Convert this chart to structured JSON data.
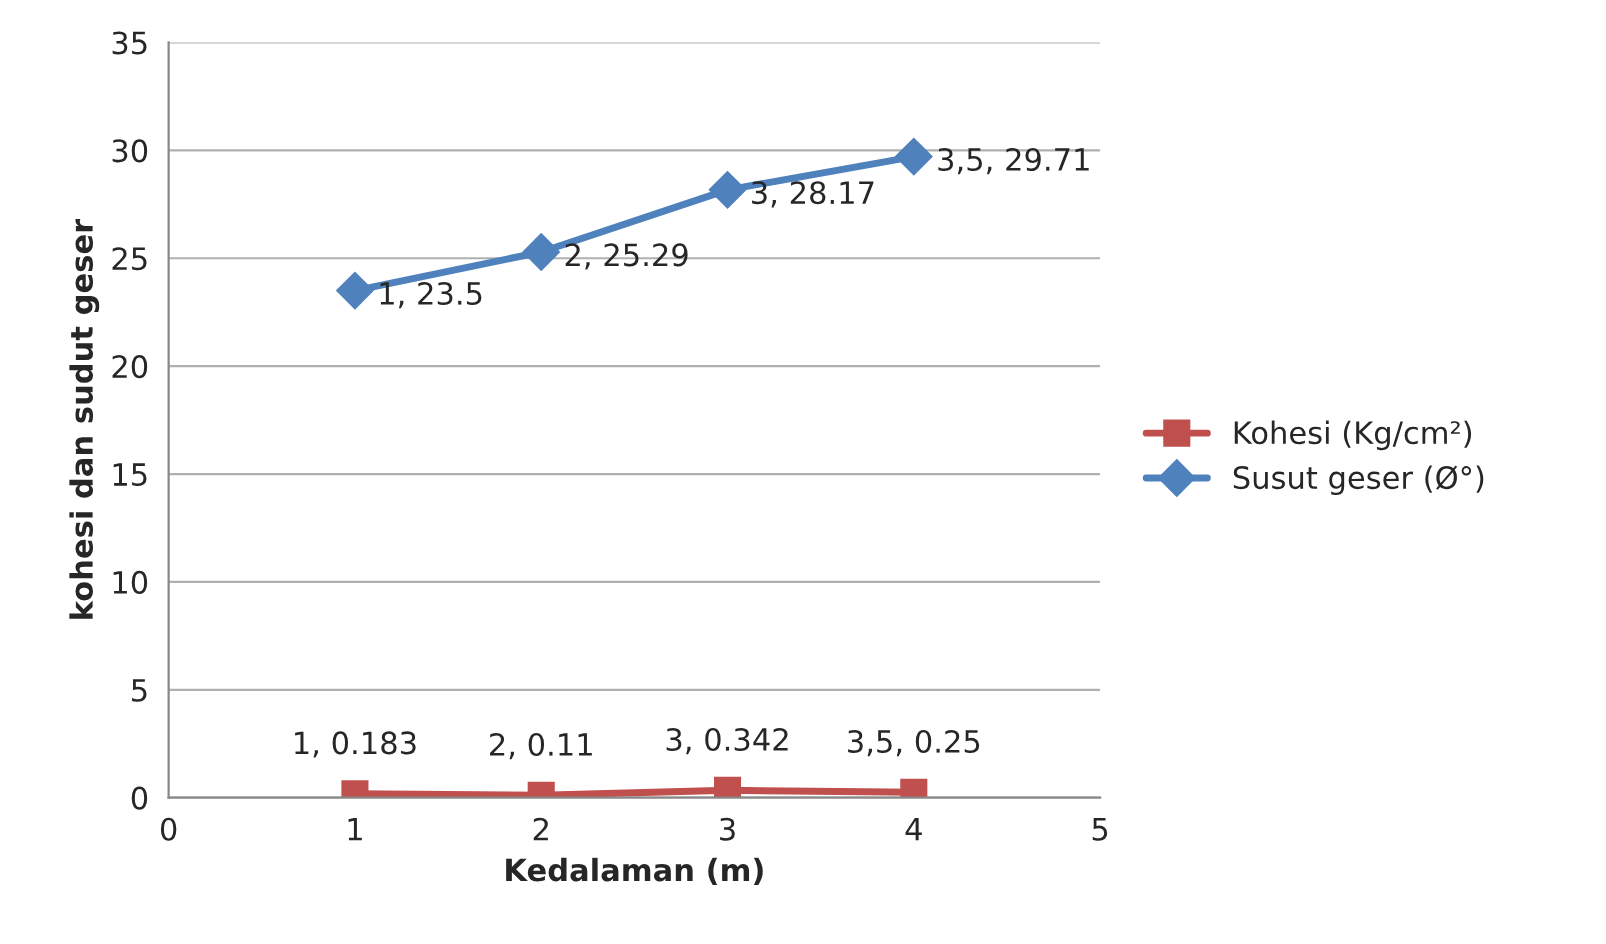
{
  "chart_data": {
    "type": "line",
    "xlabel": "Kedalaman (m)",
    "ylabel": "kohesi dan sudut geser",
    "x": [
      1,
      2,
      3,
      4
    ],
    "series": [
      {
        "name": "Kohesi (Kg/cm²)",
        "color": "#c0504d",
        "marker": "square",
        "values": [
          0.183,
          0.11,
          0.342,
          0.25
        ],
        "value_labels": [
          "1, 0.183",
          "2, 0.11",
          "3, 0.342",
          "3,5, 0.25"
        ]
      },
      {
        "name": "Susut geser (Ø°)",
        "color": "#4f81bd",
        "marker": "diamond",
        "values": [
          23.5,
          25.29,
          28.17,
          29.71
        ],
        "value_labels": [
          "1, 23.5",
          "2, 25.29",
          "3, 28.17",
          "3,5, 29.71"
        ]
      }
    ],
    "xlim": [
      0,
      5
    ],
    "xticks": [
      0,
      1,
      2,
      3,
      4,
      5
    ],
    "ylim": [
      0,
      35
    ],
    "yticks": [
      0,
      5,
      10,
      15,
      20,
      25,
      30,
      35
    ],
    "grid": "y",
    "legend": "right"
  }
}
